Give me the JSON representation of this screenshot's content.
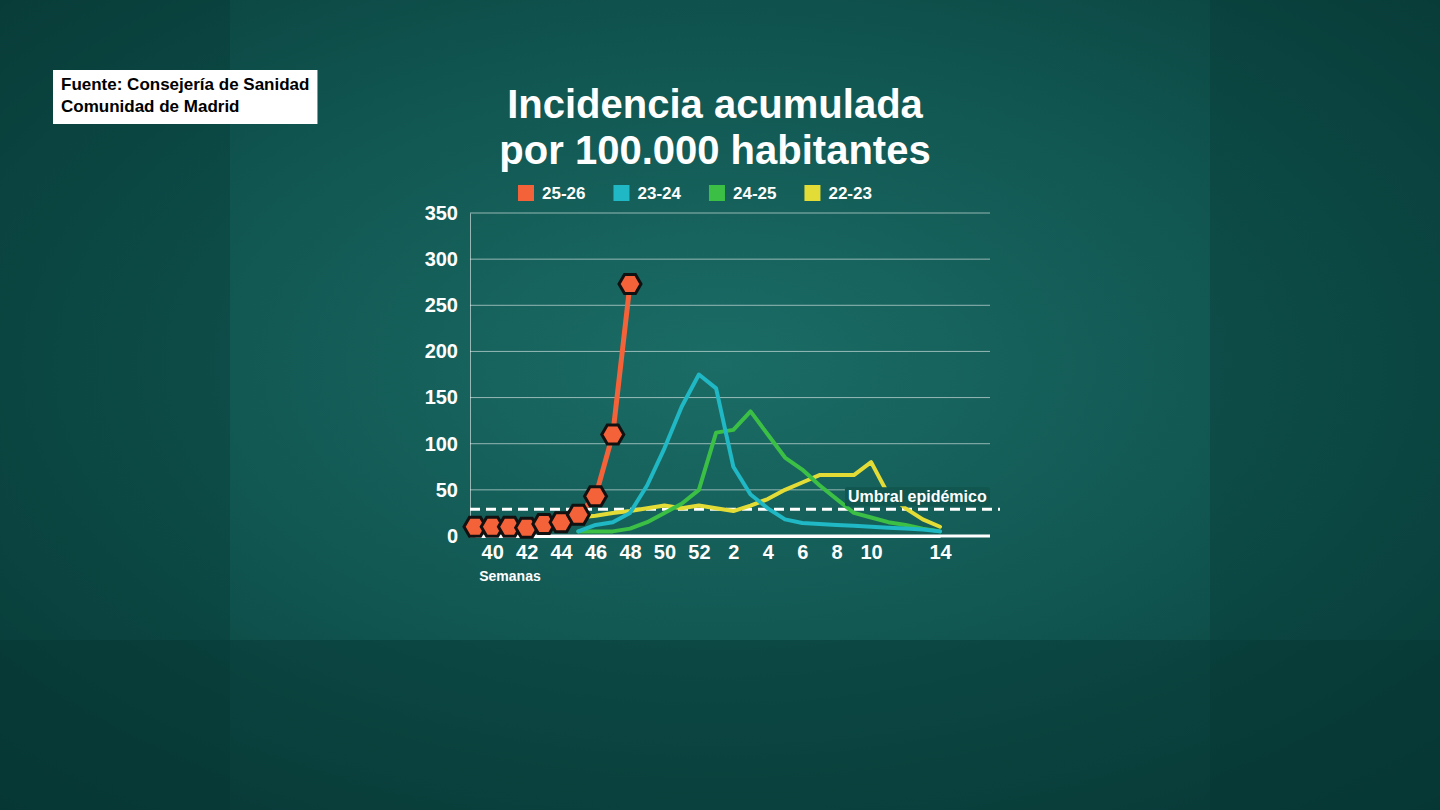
{
  "chart_data": {
    "type": "line",
    "title": [
      "Incidencia acumulada",
      "por 100.000 habitantes"
    ],
    "source": [
      "Fuente: Consejería de Sanidad",
      "Comunidad de Madrid"
    ],
    "xlabel": "Semanas",
    "categories": [
      null,
      "40",
      null,
      "42",
      null,
      "44",
      null,
      "46",
      null,
      "48",
      null,
      "50",
      null,
      "52",
      null,
      "2",
      null,
      "4",
      null,
      "6",
      null,
      "8",
      null,
      "10",
      null,
      null,
      null,
      "14"
    ],
    "series": [
      {
        "name": "25-26",
        "color": "#f4623a",
        "marker": "hexagon",
        "values": [
          10,
          10,
          10,
          9,
          13,
          15,
          23,
          43,
          110,
          273,
          null,
          null,
          null,
          null,
          null,
          null,
          null,
          null,
          null,
          null,
          null,
          null,
          null,
          null,
          null,
          null,
          null,
          null
        ]
      },
      {
        "name": "23-24",
        "color": "#1fb8c4",
        "values": [
          null,
          null,
          null,
          null,
          null,
          null,
          5,
          12,
          15,
          25,
          55,
          95,
          140,
          175,
          160,
          75,
          45,
          30,
          18,
          14,
          13,
          12,
          11,
          10,
          9,
          8,
          7,
          5
        ]
      },
      {
        "name": "24-25",
        "color": "#3cbf45",
        "values": [
          null,
          null,
          null,
          null,
          null,
          null,
          5,
          5,
          5,
          8,
          15,
          25,
          35,
          50,
          112,
          115,
          135,
          110,
          85,
          72,
          55,
          40,
          25,
          20,
          15,
          12,
          8,
          5
        ]
      },
      {
        "name": "22-23",
        "color": "#e3dc36",
        "values": [
          null,
          null,
          null,
          null,
          null,
          null,
          20,
          22,
          25,
          27,
          30,
          33,
          30,
          33,
          30,
          27,
          33,
          40,
          50,
          58,
          66,
          66,
          66,
          80,
          45,
          30,
          18,
          10
        ]
      }
    ],
    "ylim": [
      0,
      350
    ],
    "yticks": [
      0,
      50,
      100,
      150,
      200,
      250,
      300,
      350
    ],
    "grid": true,
    "legend": "top",
    "annotations": [
      {
        "text": "Umbral epidémico",
        "y": 29,
        "line_style": "dashed"
      }
    ]
  }
}
